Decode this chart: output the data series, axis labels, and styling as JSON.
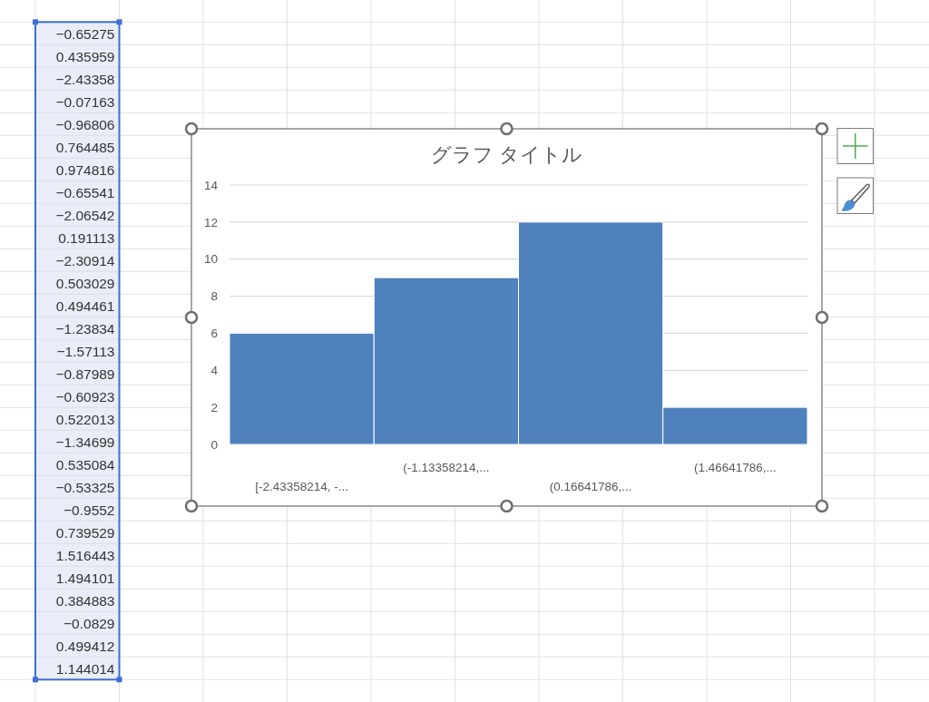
{
  "chart_data": {
    "type": "histogram",
    "title": "グラフ タイトル",
    "categories": [
      "[-2.43358214, -...",
      "(-1.13358214,...",
      "(0.16641786,...",
      "(1.46641786,..."
    ],
    "values": [
      6,
      9,
      12,
      2
    ],
    "color": "#4f81bd",
    "ylim": [
      0,
      14
    ],
    "yticks": [
      0,
      2,
      4,
      6,
      8,
      10,
      12,
      14
    ],
    "grid": "y",
    "annotations": [
      "−0.65275",
      "0.435959",
      "−2.43358",
      "−0.07163",
      "−0.96806",
      "0.764485",
      "0.974816",
      "−0.65541",
      "−2.06542",
      "0.191113",
      "−2.30914",
      "0.503029",
      "0.494461",
      "−1.23834",
      "−1.57113",
      "−0.87989",
      "−0.60923",
      "0.522013",
      "−1.34699",
      "0.535084",
      "−0.53325",
      "−0.9552",
      "0.739529",
      "1.516443",
      "1.494101",
      "0.384883",
      "−0.0829",
      "0.499412",
      "1.144014"
    ]
  }
}
